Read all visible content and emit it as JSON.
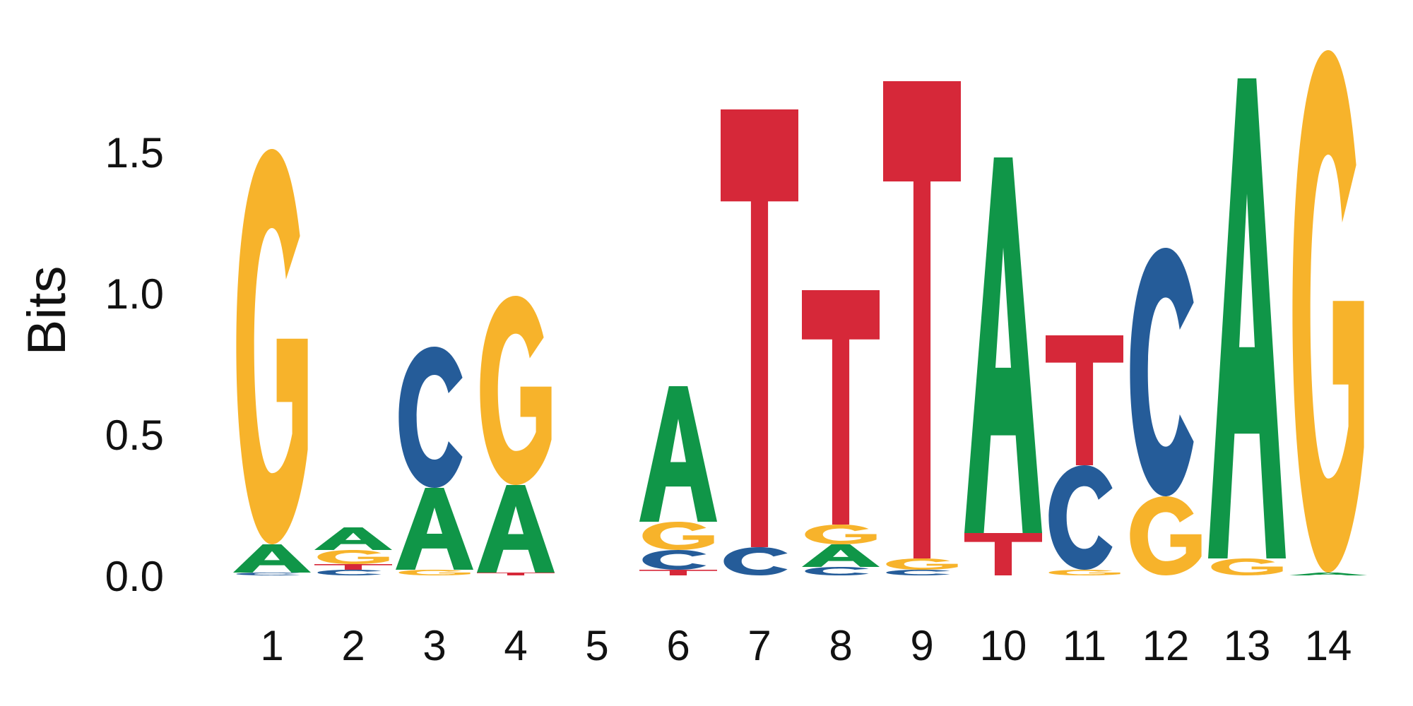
{
  "chart_data": {
    "type": "sequence-logo",
    "ylabel": "Bits",
    "ylim": [
      0,
      1.85
    ],
    "yticks": [
      "0.0",
      "0.5",
      "1.0",
      "1.5"
    ],
    "ytick_values": [
      0,
      0.5,
      1.0,
      1.5
    ],
    "positions": [
      "1",
      "2",
      "3",
      "4",
      "5",
      "6",
      "7",
      "8",
      "9",
      "10",
      "11",
      "12",
      "13",
      "14"
    ],
    "colors": {
      "A": "#109648",
      "C": "#255C99",
      "G": "#F7B32B",
      "T": "#D62839"
    },
    "stacks": [
      [
        {
          "letter": "C",
          "bits": 0.01
        },
        {
          "letter": "A",
          "bits": 0.1
        },
        {
          "letter": "G",
          "bits": 1.4
        }
      ],
      [
        {
          "letter": "C",
          "bits": 0.02
        },
        {
          "letter": "T",
          "bits": 0.02
        },
        {
          "letter": "G",
          "bits": 0.05
        },
        {
          "letter": "A",
          "bits": 0.08
        }
      ],
      [
        {
          "letter": "G",
          "bits": 0.02
        },
        {
          "letter": "A",
          "bits": 0.29
        },
        {
          "letter": "C",
          "bits": 0.5
        }
      ],
      [
        {
          "letter": "T",
          "bits": 0.01
        },
        {
          "letter": "A",
          "bits": 0.31
        },
        {
          "letter": "G",
          "bits": 0.67
        }
      ],
      [],
      [
        {
          "letter": "T",
          "bits": 0.02
        },
        {
          "letter": "C",
          "bits": 0.07
        },
        {
          "letter": "G",
          "bits": 0.1
        },
        {
          "letter": "A",
          "bits": 0.48
        }
      ],
      [
        {
          "letter": "C",
          "bits": 0.1
        },
        {
          "letter": "T",
          "bits": 1.55
        }
      ],
      [
        {
          "letter": "C",
          "bits": 0.03
        },
        {
          "letter": "A",
          "bits": 0.08
        },
        {
          "letter": "G",
          "bits": 0.07
        },
        {
          "letter": "T",
          "bits": 0.83
        }
      ],
      [
        {
          "letter": "C",
          "bits": 0.02
        },
        {
          "letter": "G",
          "bits": 0.04
        },
        {
          "letter": "T",
          "bits": 1.69
        }
      ],
      [
        {
          "letter": "T",
          "bits": 0.15
        },
        {
          "letter": "A",
          "bits": 1.33
        }
      ],
      [
        {
          "letter": "G",
          "bits": 0.02
        },
        {
          "letter": "C",
          "bits": 0.37
        },
        {
          "letter": "T",
          "bits": 0.46
        }
      ],
      [
        {
          "letter": "G",
          "bits": 0.28
        },
        {
          "letter": "C",
          "bits": 0.88
        }
      ],
      [
        {
          "letter": "G",
          "bits": 0.06
        },
        {
          "letter": "A",
          "bits": 1.7
        }
      ],
      [
        {
          "letter": "A",
          "bits": 0.01
        },
        {
          "letter": "G",
          "bits": 1.85
        }
      ]
    ]
  }
}
